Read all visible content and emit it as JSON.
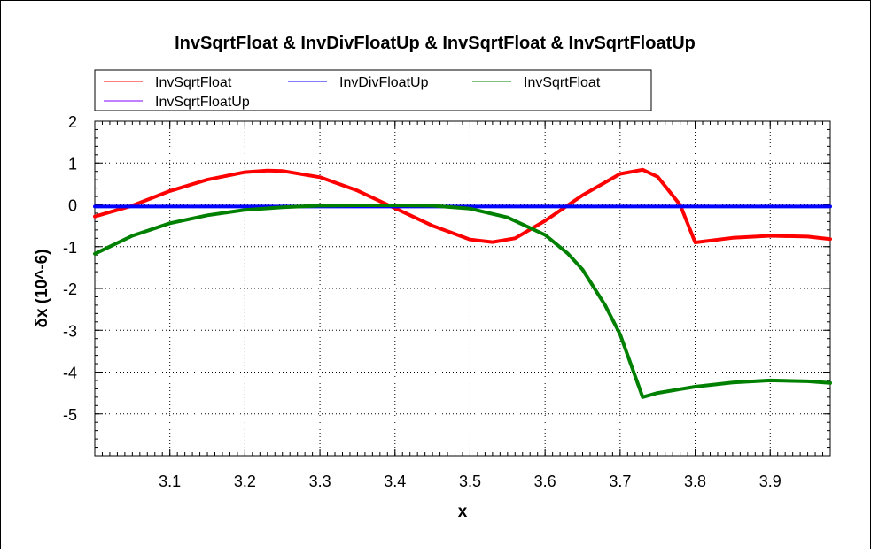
{
  "chart_data": {
    "type": "line",
    "title": "InvSqrtFloat & InvDivFloatUp & InvSqrtFloat & InvSqrtFloatUp",
    "xlabel": "x",
    "ylabel": "δx (10^-6)",
    "xlim": [
      3.0,
      3.98
    ],
    "ylim": [
      -6,
      2
    ],
    "xticks": [
      3.1,
      3.2,
      3.3,
      3.4,
      3.5,
      3.6,
      3.7,
      3.8,
      3.9
    ],
    "xtick_labels": [
      "3.1",
      "3.2",
      "3.3",
      "3.4",
      "3.5",
      "3.6",
      "3.7",
      "3.8",
      "3.9"
    ],
    "yticks": [
      2,
      1,
      0,
      -1,
      -2,
      -3,
      -4,
      -5
    ],
    "ytick_labels": [
      "2",
      "1",
      "0",
      "-1",
      "-2",
      "-3",
      "-4",
      "-5"
    ],
    "grid": true,
    "legend_position": "top",
    "series": [
      {
        "name": "InvSqrtFloat",
        "color": "#ff0000",
        "x": [
          3.0,
          3.05,
          3.1,
          3.15,
          3.2,
          3.23,
          3.25,
          3.3,
          3.35,
          3.4,
          3.45,
          3.5,
          3.53,
          3.56,
          3.6,
          3.65,
          3.7,
          3.73,
          3.75,
          3.78,
          3.8,
          3.85,
          3.9,
          3.95,
          3.98
        ],
        "y": [
          -0.28,
          -0.02,
          0.33,
          0.6,
          0.78,
          0.82,
          0.81,
          0.66,
          0.34,
          -0.08,
          -0.5,
          -0.83,
          -0.89,
          -0.8,
          -0.38,
          0.23,
          0.74,
          0.84,
          0.67,
          0.0,
          -0.9,
          -0.79,
          -0.74,
          -0.76,
          -0.82
        ]
      },
      {
        "name": "InvDivFloatUp",
        "color": "#0000ff",
        "x": [
          3.0,
          3.98
        ],
        "y": [
          -0.04,
          -0.04
        ]
      },
      {
        "name": "InvSqrtFloat",
        "color": "#008000",
        "x": [
          3.0,
          3.05,
          3.1,
          3.15,
          3.2,
          3.25,
          3.3,
          3.35,
          3.4,
          3.45,
          3.5,
          3.55,
          3.6,
          3.63,
          3.65,
          3.68,
          3.7,
          3.73,
          3.75,
          3.8,
          3.85,
          3.9,
          3.95,
          3.98
        ],
        "y": [
          -1.17,
          -0.74,
          -0.44,
          -0.25,
          -0.12,
          -0.06,
          -0.02,
          -0.01,
          -0.01,
          -0.02,
          -0.09,
          -0.3,
          -0.72,
          -1.16,
          -1.55,
          -2.4,
          -3.1,
          -4.6,
          -4.5,
          -4.35,
          -4.25,
          -4.2,
          -4.22,
          -4.26
        ]
      },
      {
        "name": "InvSqrtFloatUp",
        "color": "#8000ff",
        "x": [],
        "y": []
      }
    ]
  }
}
